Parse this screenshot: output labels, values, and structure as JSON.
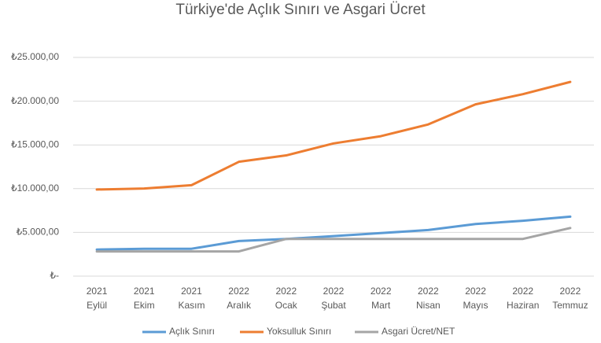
{
  "chart_data": {
    "type": "line",
    "title": "Türkiye'de Açlık Sınırı ve Asgari Ücret",
    "categories": [
      [
        "2021",
        "Eylül"
      ],
      [
        "2021",
        "Ekim"
      ],
      [
        "2021",
        "Kasım"
      ],
      [
        "2022",
        "Aralık"
      ],
      [
        "2022",
        "Ocak"
      ],
      [
        "2022",
        "Şubat"
      ],
      [
        "2022",
        "Mart"
      ],
      [
        "2022",
        "Nisan"
      ],
      [
        "2022",
        "Mayıs"
      ],
      [
        "2022",
        "Haziran"
      ],
      [
        "2022",
        "Temmuz"
      ]
    ],
    "series": [
      {
        "name": "Açlık Sınırı",
        "color": "#5b9bd5",
        "values": [
          3040,
          3130,
          3130,
          4013,
          4250,
          4580,
          4920,
          5270,
          5960,
          6330,
          6800
        ]
      },
      {
        "name": "Yoksulluk Sınırı",
        "color": "#ed7d31",
        "values": [
          9900,
          10020,
          10400,
          13070,
          13800,
          15170,
          16000,
          17340,
          19640,
          20800,
          22200
        ]
      },
      {
        "name": "Asgari Ücret/NET",
        "color": "#a5a5a5",
        "values": [
          2826,
          2826,
          2826,
          2826,
          4253,
          4253,
          4253,
          4253,
          4253,
          4253,
          5500
        ]
      }
    ],
    "ylim": [
      0,
      25000
    ],
    "yticks": [
      {
        "value": 0,
        "label": "₺-"
      },
      {
        "value": 5000,
        "label": "₺5.000,00"
      },
      {
        "value": 10000,
        "label": "₺10.000,00"
      },
      {
        "value": 15000,
        "label": "₺15.000,00"
      },
      {
        "value": 20000,
        "label": "₺20.000,00"
      },
      {
        "value": 25000,
        "label": "₺25.000,00"
      }
    ],
    "grid": true,
    "legend": "bottom"
  }
}
